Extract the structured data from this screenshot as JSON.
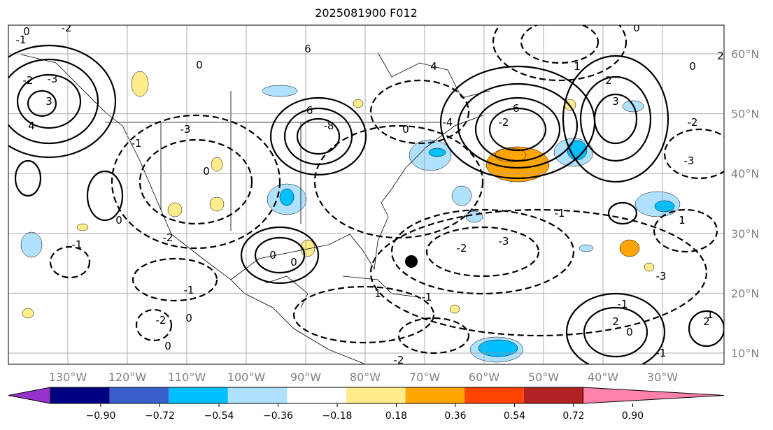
{
  "title": "2025081900 F012",
  "longitude_labels": [
    "130°W",
    "120°W",
    "110°W",
    "100°W",
    "90°W",
    "80°W",
    "70°W",
    "60°W",
    "50°W",
    "40°W",
    "30°W"
  ],
  "latitude_labels": [
    "60°N",
    "50°N",
    "40°N",
    "30°N",
    "20°N",
    "10°N"
  ],
  "colorbar": {
    "ticks": [
      "−0.90",
      "−0.72",
      "−0.54",
      "−0.36",
      "−0.18",
      "0.18",
      "0.36",
      "0.54",
      "0.72",
      "0.90"
    ],
    "colors": [
      "#9932CC",
      "#000080",
      "#3A5FCD",
      "#00BFFF",
      "#B0E2FF",
      "#FFFFFF",
      "#FFEC8B",
      "#FFA500",
      "#FF4500",
      "#B22222",
      "#FF82AB"
    ]
  },
  "contour_labels": [
    "0",
    "-1",
    "-2",
    "-3",
    "3",
    "4",
    "-2",
    "0",
    "-3",
    "-1",
    "0",
    "-2",
    "-1",
    "-6",
    "-8",
    "6",
    "4",
    "-4",
    "-6",
    "-2",
    "0",
    "3",
    "2",
    "-2",
    "-3",
    "1",
    "-3",
    "2",
    "0",
    "1",
    "-1",
    "0",
    "0",
    "2",
    "-2",
    "-3",
    "0",
    "-1",
    "-2",
    "0",
    "1",
    "-1",
    "2",
    "0",
    "-1",
    "-2",
    "0",
    "1",
    "-1",
    "0",
    "2"
  ],
  "marker": {
    "label": "storm center",
    "lon": -69,
    "lat": 25.5
  },
  "grid_color": "#999999",
  "axis_label_color": "#808080"
}
